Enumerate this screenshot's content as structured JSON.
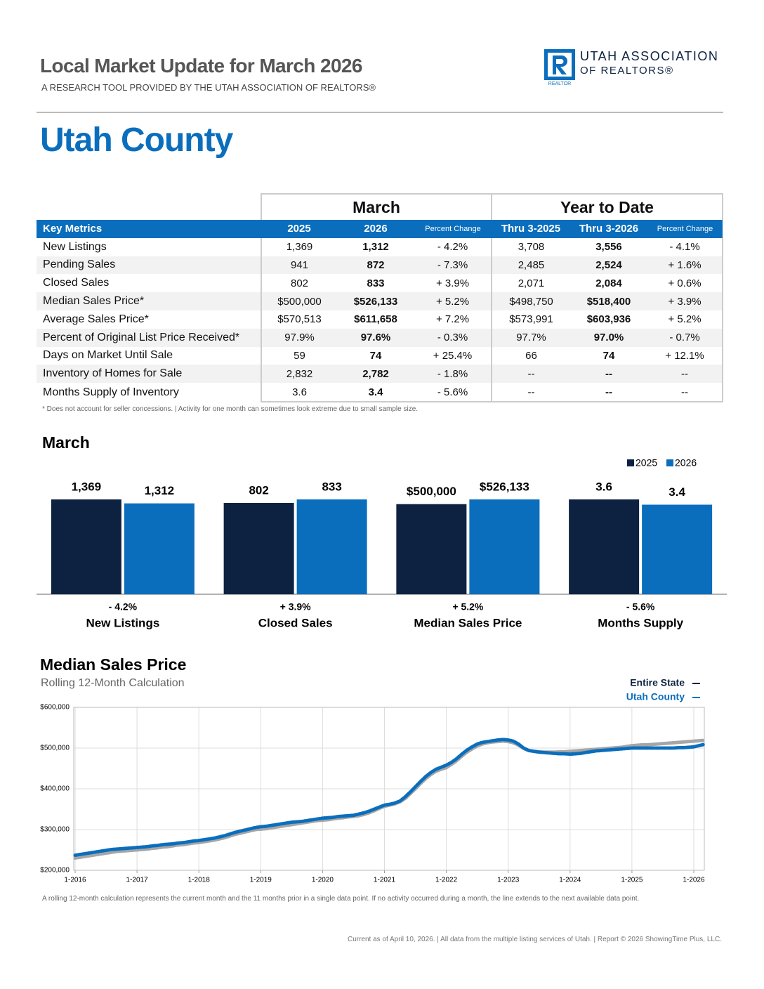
{
  "header": {
    "title": "Local Market Update for March 2026",
    "subtitle": "A RESEARCH TOOL PROVIDED BY THE UTAH ASSOCIATION OF REALTORS®",
    "logo_line1": "UTAH ASSOCIATION",
    "logo_line2": "OF REALTORS®",
    "logo_mark": "REALTOR"
  },
  "area": "Utah County",
  "table": {
    "groups": [
      "March",
      "Year to Date"
    ],
    "columns": [
      "Key Metrics",
      "2025",
      "2026",
      "Percent Change",
      "Thru 3-2025",
      "Thru 3-2026",
      "Percent Change"
    ],
    "rows": [
      [
        "New Listings",
        "1,369",
        "1,312",
        "- 4.2%",
        "3,708",
        "3,556",
        "- 4.1%"
      ],
      [
        "Pending Sales",
        "941",
        "872",
        "- 7.3%",
        "2,485",
        "2,524",
        "+ 1.6%"
      ],
      [
        "Closed Sales",
        "802",
        "833",
        "+ 3.9%",
        "2,071",
        "2,084",
        "+ 0.6%"
      ],
      [
        "Median Sales Price*",
        "$500,000",
        "$526,133",
        "+ 5.2%",
        "$498,750",
        "$518,400",
        "+ 3.9%"
      ],
      [
        "Average Sales Price*",
        "$570,513",
        "$611,658",
        "+ 7.2%",
        "$573,991",
        "$603,936",
        "+ 5.2%"
      ],
      [
        "Percent of Original List Price Received*",
        "97.9%",
        "97.6%",
        "- 0.3%",
        "97.7%",
        "97.0%",
        "- 0.7%"
      ],
      [
        "Days on Market Until Sale",
        "59",
        "74",
        "+ 25.4%",
        "66",
        "74",
        "+ 12.1%"
      ],
      [
        "Inventory of Homes for Sale",
        "2,832",
        "2,782",
        "- 1.8%",
        "--",
        "--",
        "--"
      ],
      [
        "Months Supply of Inventory",
        "3.6",
        "3.4",
        "- 5.6%",
        "--",
        "--",
        "--"
      ]
    ],
    "footnote": "* Does not account for seller concessions.  |  Activity for one month can sometimes look extreme due to small sample size."
  },
  "chart_data": [
    {
      "type": "bar",
      "title": "March",
      "categories": [
        "New Listings",
        "Closed Sales",
        "Median Sales Price",
        "Months Supply"
      ],
      "changes": [
        "- 4.2%",
        "+ 3.9%",
        "+ 5.2%",
        "- 5.6%"
      ],
      "series": [
        {
          "name": "2025",
          "color": "#0d2240",
          "values": [
            1369,
            802,
            500000,
            3.6
          ],
          "value_labels": [
            "1,369",
            "802",
            "$500,000",
            "3.6"
          ]
        },
        {
          "name": "2026",
          "color": "#0a6ebd",
          "values": [
            1312,
            833,
            526133,
            3.4
          ],
          "value_labels": [
            "1,312",
            "833",
            "$526,133",
            "3.4"
          ]
        }
      ],
      "legend": "top-right"
    },
    {
      "type": "line",
      "title": "Median Sales Price",
      "subtitle": "Rolling 12-Month Calculation",
      "x": [
        "1-2016",
        "2-2016",
        "3-2016",
        "4-2016",
        "5-2016",
        "6-2016",
        "7-2016",
        "8-2016",
        "9-2016",
        "10-2016",
        "11-2016",
        "12-2016",
        "1-2017",
        "2-2017",
        "3-2017",
        "4-2017",
        "5-2017",
        "6-2017",
        "7-2017",
        "8-2017",
        "9-2017",
        "10-2017",
        "11-2017",
        "12-2017",
        "1-2018",
        "2-2018",
        "3-2018",
        "4-2018",
        "5-2018",
        "6-2018",
        "7-2018",
        "8-2018",
        "9-2018",
        "10-2018",
        "11-2018",
        "12-2018",
        "1-2019",
        "2-2019",
        "3-2019",
        "4-2019",
        "5-2019",
        "6-2019",
        "7-2019",
        "8-2019",
        "9-2019",
        "10-2019",
        "11-2019",
        "12-2019",
        "1-2020",
        "2-2020",
        "3-2020",
        "4-2020",
        "5-2020",
        "6-2020",
        "7-2020",
        "8-2020",
        "9-2020",
        "10-2020",
        "11-2020",
        "12-2020",
        "1-2021",
        "2-2021",
        "3-2021",
        "4-2021",
        "5-2021",
        "6-2021",
        "7-2021",
        "8-2021",
        "9-2021",
        "10-2021",
        "11-2021",
        "12-2021",
        "1-2022",
        "2-2022",
        "3-2022",
        "4-2022",
        "5-2022",
        "6-2022",
        "7-2022",
        "8-2022",
        "9-2022",
        "10-2022",
        "11-2022",
        "12-2022",
        "1-2023",
        "2-2023",
        "3-2023",
        "4-2023",
        "5-2023",
        "6-2023",
        "7-2023",
        "8-2023",
        "9-2023",
        "10-2023",
        "11-2023",
        "12-2023",
        "1-2024",
        "2-2024",
        "3-2024",
        "4-2024",
        "5-2024",
        "6-2024",
        "7-2024",
        "8-2024",
        "9-2024",
        "10-2024",
        "11-2024",
        "12-2024",
        "1-2025",
        "2-2025",
        "3-2025",
        "4-2025",
        "5-2025",
        "6-2025",
        "7-2025",
        "8-2025",
        "9-2025",
        "10-2025",
        "11-2025",
        "12-2025",
        "1-2026",
        "2-2026",
        "3-2026"
      ],
      "xticks": [
        "1-2016",
        "1-2017",
        "1-2018",
        "1-2019",
        "1-2020",
        "1-2021",
        "1-2022",
        "1-2023",
        "1-2024",
        "1-2025",
        "1-2026"
      ],
      "series": [
        {
          "name": "Entire State",
          "color": "#a6a6a6",
          "values": [
            230000,
            232000,
            234000,
            236000,
            238000,
            240000,
            242000,
            244000,
            246000,
            247000,
            248000,
            249000,
            250000,
            251000,
            252000,
            254000,
            255000,
            257000,
            258000,
            260000,
            262000,
            263000,
            265000,
            267000,
            268000,
            270000,
            272000,
            274000,
            277000,
            280000,
            284000,
            288000,
            291000,
            294000,
            297000,
            300000,
            301000,
            302000,
            304000,
            306000,
            308000,
            310000,
            312000,
            314000,
            316000,
            318000,
            320000,
            322000,
            323000,
            324000,
            326000,
            328000,
            329000,
            331000,
            332000,
            334000,
            337000,
            341000,
            346000,
            352000,
            357000,
            360000,
            363000,
            368000,
            376000,
            388000,
            400000,
            413000,
            425000,
            435000,
            443000,
            448000,
            452000,
            460000,
            469000,
            480000,
            490000,
            498000,
            505000,
            510000,
            513000,
            515000,
            516000,
            517000,
            516000,
            513000,
            507000,
            499000,
            494000,
            492000,
            491000,
            490000,
            490000,
            490000,
            491000,
            491000,
            492000,
            493000,
            494000,
            495000,
            496000,
            497000,
            498000,
            499000,
            500000,
            501000,
            502000,
            504000,
            506000,
            507000,
            508000,
            508000,
            509000,
            510000,
            511000,
            512000,
            513000,
            514000,
            515000,
            516000,
            517000,
            518000,
            519000
          ]
        },
        {
          "name": "Utah County",
          "color": "#0a6ebd",
          "values": [
            237000,
            239000,
            241000,
            243000,
            245000,
            247000,
            249000,
            251000,
            252000,
            253000,
            254000,
            255000,
            256000,
            257000,
            258000,
            260000,
            261000,
            263000,
            264000,
            265000,
            267000,
            268000,
            270000,
            272000,
            273000,
            275000,
            277000,
            279000,
            282000,
            285000,
            289000,
            293000,
            296000,
            299000,
            302000,
            305000,
            307000,
            308000,
            310000,
            312000,
            314000,
            316000,
            318000,
            319000,
            320000,
            322000,
            324000,
            326000,
            328000,
            329000,
            330000,
            332000,
            333000,
            334000,
            335000,
            338000,
            341000,
            345000,
            350000,
            355000,
            360000,
            362000,
            365000,
            370000,
            380000,
            392000,
            405000,
            418000,
            430000,
            440000,
            448000,
            453000,
            458000,
            465000,
            474000,
            485000,
            495000,
            503000,
            510000,
            514000,
            516000,
            518000,
            520000,
            521000,
            520000,
            517000,
            510000,
            500000,
            494000,
            492000,
            490000,
            489000,
            488000,
            487000,
            486000,
            486000,
            485000,
            486000,
            487000,
            489000,
            491000,
            493000,
            494000,
            495000,
            496000,
            497000,
            498000,
            499000,
            500000,
            500000,
            500000,
            500000,
            500000,
            500000,
            500000,
            500000,
            500000,
            501000,
            501000,
            502000,
            503000,
            506000,
            509000
          ]
        }
      ],
      "ylim": [
        200000,
        600000
      ],
      "yticks": [
        {
          "value": 200000,
          "label": "$200,000"
        },
        {
          "value": 300000,
          "label": "$300,000"
        },
        {
          "value": 400000,
          "label": "$400,000"
        },
        {
          "value": 500000,
          "label": "$500,000"
        },
        {
          "value": 600000,
          "label": "$600,000"
        }
      ],
      "grid": true,
      "legend": "top-right"
    }
  ],
  "line_note": "A rolling 12-month calculation represents the current month and the 11 months prior in a single data point. If no activity occurred during a month, the line extends to the next available data point.",
  "footer": "Current as of April 10, 2026.   |  All data from the multiple listing services of Utah.  |  Report © 2026 ShowingTime Plus, LLC."
}
